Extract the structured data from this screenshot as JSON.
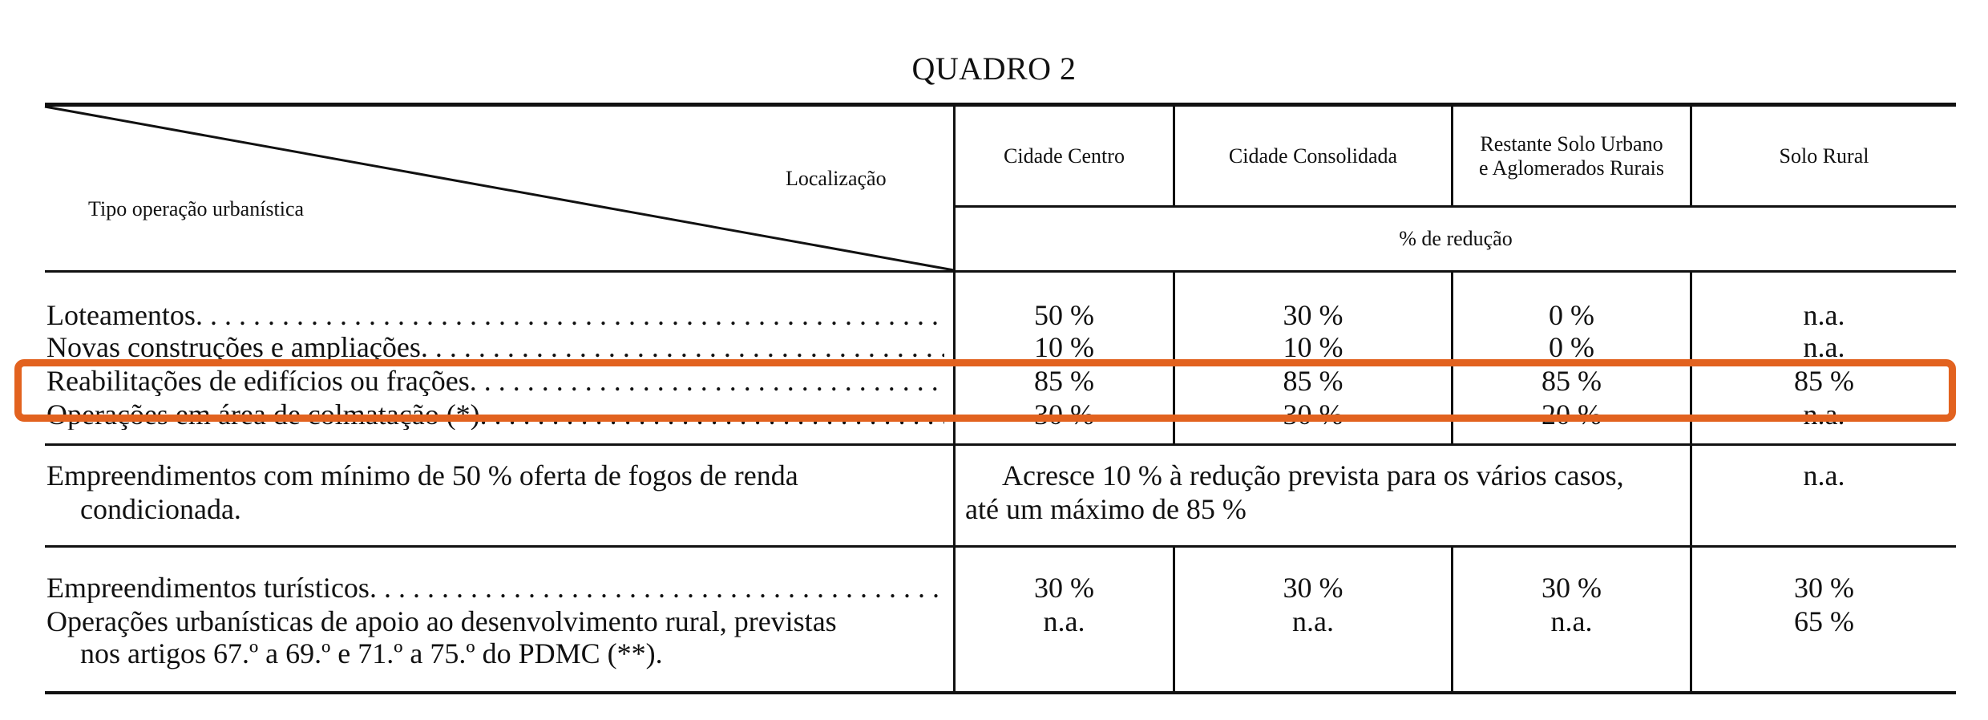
{
  "title": "QUADRO 2",
  "header": {
    "corner_top": "Localização",
    "corner_bottom": "Tipo operação urbanística",
    "columns": [
      "Cidade Centro",
      "Cidade Consolidada",
      "Restante Solo Urbano e Aglomerados Rurais",
      "Solo Rural"
    ],
    "subheader": "% de redução"
  },
  "rows_group1": [
    {
      "label": "Loteamentos",
      "values": [
        "50 %",
        "30 %",
        "0 %",
        "n.a."
      ]
    },
    {
      "label": "Novas construções e ampliações",
      "values": [
        "10 %",
        "10 %",
        "0 %",
        "n.a."
      ]
    },
    {
      "label": "Reabilitações de edifícios ou frações",
      "values": [
        "85 %",
        "85 %",
        "85 %",
        "85 %"
      ]
    },
    {
      "label": "Operações em área de colmatação (*)",
      "values": [
        "30 %",
        "30 %",
        "20 %",
        "n.a."
      ]
    }
  ],
  "row_group2": {
    "label_line1": "Empreendimentos com mínimo de 50 % oferta de fogos de renda",
    "label_line2": "condicionada.",
    "merged_line1": "Acresce 10 % à redução prevista para os vários casos,",
    "merged_line2": "até um máximo de 85 %",
    "last": "n.a."
  },
  "rows_group3": [
    {
      "label": "Empreendimentos turísticos",
      "values": [
        "30 %",
        "30 %",
        "30 %",
        "30 %"
      ]
    },
    {
      "label_line1": "Operações urbanísticas de apoio ao desenvolvimento rural, previstas",
      "label_line2": "nos artigos 67.º a 69.º e 71.º a 75.º do PDMC (**).",
      "values": [
        "n.a.",
        "n.a.",
        "n.a.",
        "65 %"
      ]
    }
  ],
  "leader": ". . . . . . . . . . . . . . . . . . . . . . . . . . . . . . . . . . . . . . . . . . . . . . . . . . . . . . . . . . . . . . . . . . . . . . . . . ."
}
